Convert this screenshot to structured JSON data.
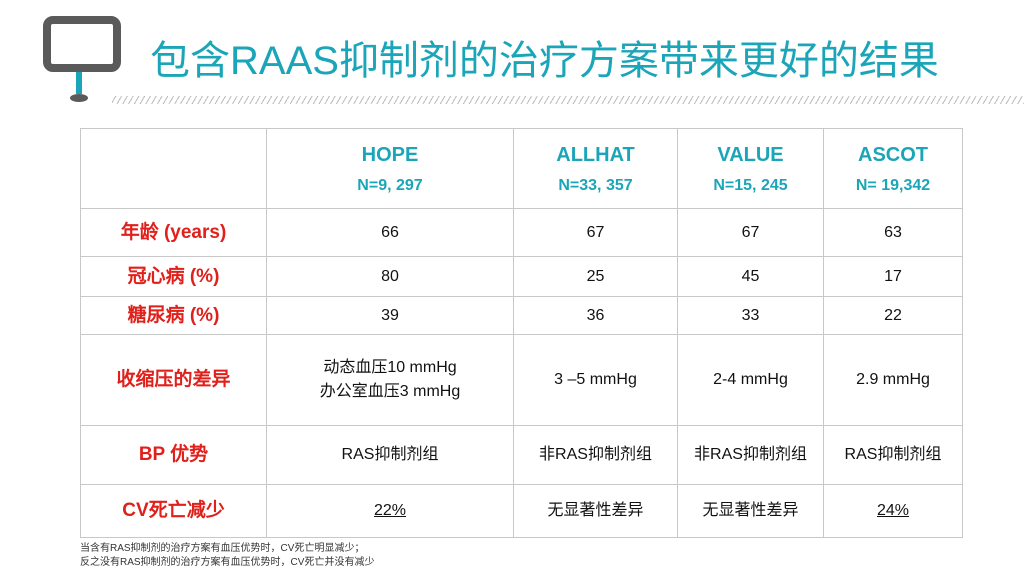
{
  "header": {
    "title": "包含RAAS抑制剂的治疗方案带来更好的结果"
  },
  "table": {
    "columns": [
      {
        "name": "HOPE",
        "n": "N=9, 297"
      },
      {
        "name": "ALLHAT",
        "n": "N=33, 357"
      },
      {
        "name": "VALUE",
        "n": "N=15, 245"
      },
      {
        "name": "ASCOT",
        "n": "N= 19,342"
      }
    ],
    "rows": [
      {
        "label": "年龄 (years)",
        "cells": [
          "66",
          "67",
          "67",
          "63"
        ]
      },
      {
        "label": "冠心病 (%)",
        "cells": [
          "80",
          "25",
          "45",
          "17"
        ]
      },
      {
        "label": "糖尿病 (%)",
        "cells": [
          "39",
          "36",
          "33",
          "22"
        ]
      },
      {
        "label": "收缩压的差异",
        "cells": [
          [
            "动态血压10 mmHg",
            "办公室血压3 mmHg"
          ],
          "3 –5 mmHg",
          "2-4 mmHg",
          "2.9 mmHg"
        ]
      },
      {
        "label": "BP 优势",
        "cells": [
          "RAS抑制剂组",
          "非RAS抑制剂组",
          "非RAS抑制剂组",
          "RAS抑制剂组"
        ]
      },
      {
        "label": "CV死亡减少",
        "cells": [
          "22%",
          "无显著性差异",
          "无显著性差异",
          "24%"
        ]
      }
    ]
  },
  "footnote": [
    "当含有RAS抑制剂的治疗方案有血压优势时，CV死亡明显减少；",
    "反之没有RAS抑制剂的治疗方案有血压优势时，CV死亡并没有减少"
  ]
}
